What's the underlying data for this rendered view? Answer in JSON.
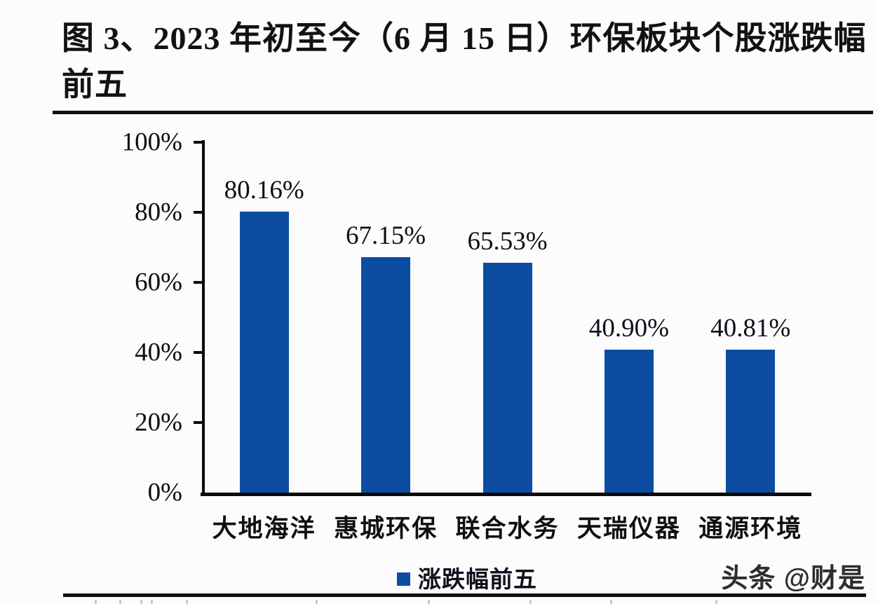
{
  "title": "图 3、2023 年初至今（6 月 15 日）环保板块个股涨跌幅前五",
  "watermark": "头条 @财是",
  "legend": {
    "label": "涨跌幅前五"
  },
  "chart_data": {
    "type": "bar",
    "title": "2023 年初至今（6 月 15 日）环保板块个股涨跌幅前五",
    "categories": [
      "大地海洋",
      "惠城环保",
      "联合水务",
      "天瑞仪器",
      "通源环境"
    ],
    "values": [
      80.16,
      67.15,
      65.53,
      40.9,
      40.81
    ],
    "value_labels": [
      "80.16%",
      "67.15%",
      "65.53%",
      "40.90%",
      "40.81%"
    ],
    "series_name": "涨跌幅前五",
    "xlabel": "",
    "ylabel": "",
    "ylim": [
      0,
      100
    ],
    "yticks": [
      "0%",
      "20%",
      "40%",
      "60%",
      "80%",
      "100%"
    ],
    "grid": false,
    "legend_position": "bottom",
    "bar_color": "#0c4da2",
    "axis_color": "#0a0a0a",
    "text_color": "#0d0d12"
  }
}
